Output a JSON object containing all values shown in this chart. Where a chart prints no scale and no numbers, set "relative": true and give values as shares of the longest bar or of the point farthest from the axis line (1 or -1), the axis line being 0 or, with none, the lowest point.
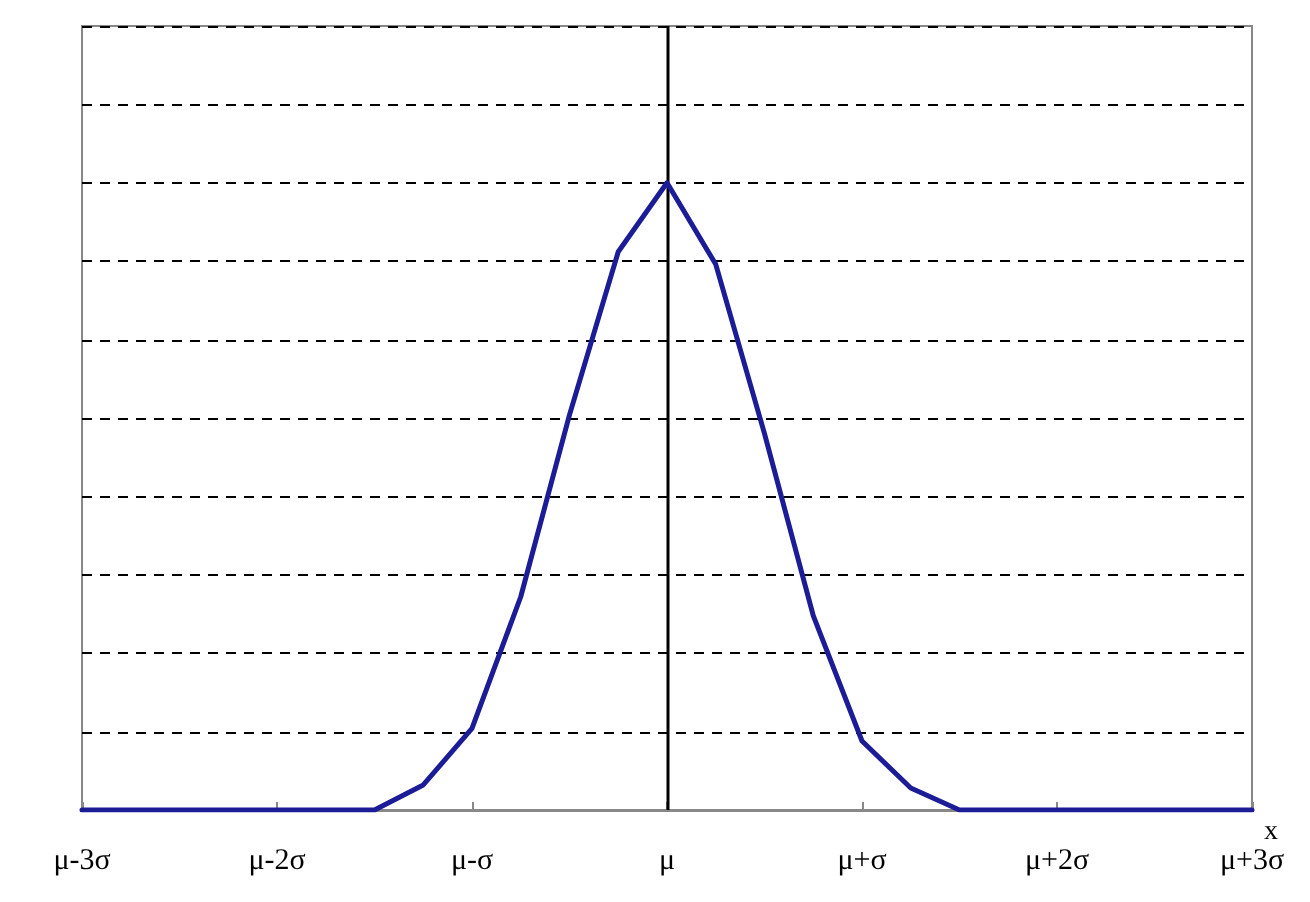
{
  "chart_data": {
    "type": "line",
    "relative": true,
    "xlabel": "x",
    "categories": [
      "μ-3σ",
      null,
      null,
      null,
      "μ-2σ",
      null,
      null,
      null,
      "μ-σ",
      null,
      null,
      null,
      "μ",
      null,
      null,
      null,
      "μ+σ",
      null,
      null,
      null,
      "μ+2σ",
      null,
      null,
      null,
      "μ+3σ"
    ],
    "grid": "y",
    "marker": "none",
    "line_style": "solid",
    "ref_lines": [
      {
        "axis": "x",
        "value": "μ",
        "color": "#000000"
      }
    ],
    "series": [
      {
        "color": "#1c1c96",
        "values": [
          0,
          0,
          0,
          0,
          0,
          0,
          0,
          0.04,
          0.13,
          0.34,
          0.63,
          0.89,
          1,
          0.87,
          0.6,
          0.31,
          0.11,
          0.035,
          0,
          0,
          0,
          0,
          0,
          0,
          0
        ]
      }
    ]
  }
}
